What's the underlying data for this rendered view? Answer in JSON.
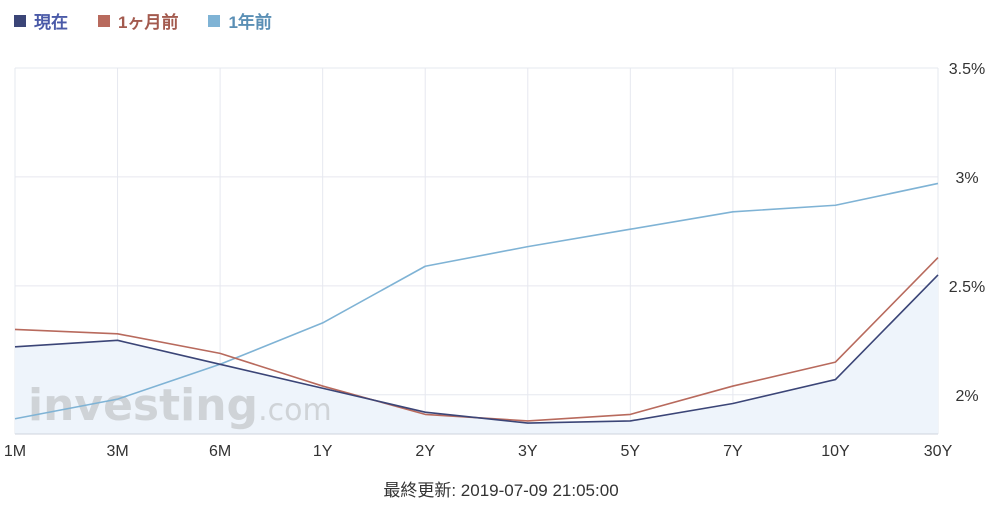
{
  "legend": [
    {
      "label": "現在",
      "color": "#3b4577"
    },
    {
      "label": "1ヶ月前",
      "color": "#b86a5d"
    },
    {
      "label": "1年前",
      "color": "#7fb3d5"
    }
  ],
  "watermark": {
    "main": "investing",
    "suffix": ".com"
  },
  "footer": {
    "text": "最終更新: 2019-07-09 21:05:00"
  },
  "chart_data": {
    "type": "line",
    "categories": [
      "1M",
      "3M",
      "6M",
      "1Y",
      "2Y",
      "3Y",
      "5Y",
      "7Y",
      "10Y",
      "30Y"
    ],
    "y_ticks": [
      "2%",
      "2.5%",
      "3%",
      "3.5%"
    ],
    "ylim": [
      1.82,
      3.5
    ],
    "grid": true,
    "y_axis_side": "right",
    "legend_position": "top-left",
    "series": [
      {
        "name": "現在",
        "color": "#3b4577",
        "area_fill": "#eef4fb",
        "values": [
          2.22,
          2.25,
          2.14,
          2.03,
          1.92,
          1.87,
          1.88,
          1.96,
          2.07,
          2.55
        ]
      },
      {
        "name": "1ヶ月前",
        "color": "#b86a5d",
        "values": [
          2.3,
          2.28,
          2.19,
          2.04,
          1.91,
          1.88,
          1.91,
          2.04,
          2.15,
          2.63
        ]
      },
      {
        "name": "1年前",
        "color": "#7fb3d5",
        "values": [
          1.89,
          1.98,
          2.14,
          2.33,
          2.59,
          2.68,
          2.76,
          2.84,
          2.87,
          2.97
        ]
      }
    ]
  }
}
